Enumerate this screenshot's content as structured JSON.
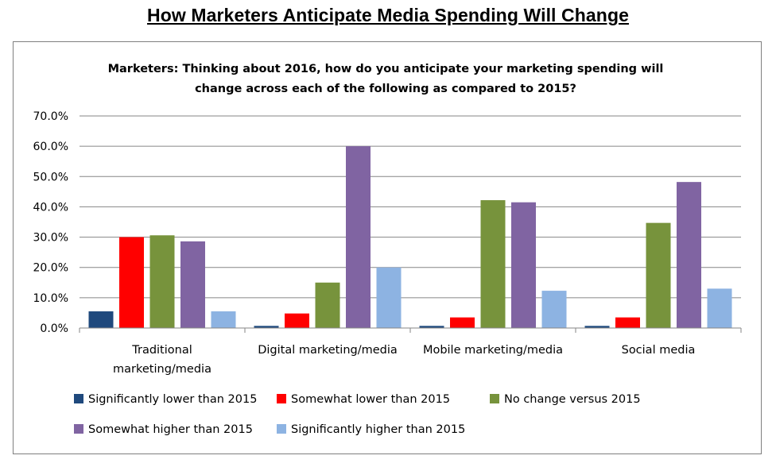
{
  "page_title": "How Marketers Anticipate Media Spending Will Change",
  "chart_data": {
    "type": "bar",
    "title_lines": [
      "Marketers:  Thinking about 2016, how do you anticipate your marketing spending will",
      "change across each of the following as compared to 2015?"
    ],
    "categories": [
      [
        "Traditional",
        "marketing/media"
      ],
      [
        "Digital marketing/media"
      ],
      [
        "Mobile marketing/media"
      ],
      [
        "Social media"
      ]
    ],
    "ylim": [
      0,
      70
    ],
    "yticks": [
      0,
      10,
      20,
      30,
      40,
      50,
      60,
      70
    ],
    "ytick_labels": [
      "0.0%",
      "10.0%",
      "20.0%",
      "30.0%",
      "40.0%",
      "50.0%",
      "60.0%",
      "70.0%"
    ],
    "grid": true,
    "legend_position": "bottom",
    "series": [
      {
        "name": "Significantly lower than 2015",
        "color": "#1f497d",
        "values": [
          5.5,
          0.7,
          0.7,
          0.7
        ]
      },
      {
        "name": "Somewhat lower than 2015",
        "color": "#ff0000",
        "values": [
          30.0,
          4.8,
          3.5,
          3.5
        ]
      },
      {
        "name": "No change versus 2015",
        "color": "#77933c",
        "values": [
          30.6,
          15.0,
          42.2,
          34.7
        ]
      },
      {
        "name": "Somewhat higher than 2015",
        "color": "#8064a2",
        "values": [
          28.6,
          60.0,
          41.5,
          48.2
        ]
      },
      {
        "name": "Significantly higher than 2015",
        "color": "#8db3e2",
        "values": [
          5.5,
          20.0,
          12.3,
          13.0
        ]
      }
    ]
  }
}
